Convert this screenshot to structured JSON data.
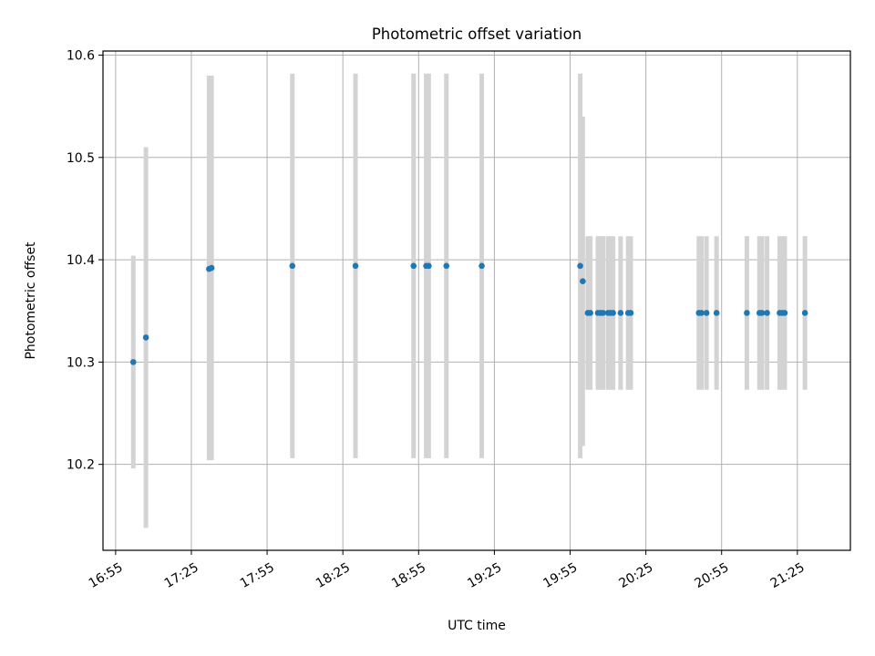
{
  "chart_data": {
    "type": "scatter",
    "title": "Photometric offset variation",
    "xlabel": "UTC time",
    "ylabel": "Photometric offset",
    "x_axis_type": "time",
    "xlim": [
      "16:50",
      "21:46"
    ],
    "ylim": [
      10.116,
      10.604
    ],
    "xticks": [
      "16:55",
      "17:25",
      "17:55",
      "18:25",
      "18:55",
      "19:25",
      "19:55",
      "20:25",
      "20:55",
      "21:25"
    ],
    "yticks": [
      10.2,
      10.3,
      10.4,
      10.5,
      10.6
    ],
    "grid": true,
    "series": [
      {
        "color": "#1f77b4",
        "errorbar_color": "#d3d3d3",
        "points": [
          {
            "x": "17:02",
            "y": 10.3,
            "y_low": 10.196,
            "y_high": 10.404
          },
          {
            "x": "17:07",
            "y": 10.324,
            "y_low": 10.138,
            "y_high": 10.51
          },
          {
            "x": "17:32",
            "y": 10.391,
            "y_low": 10.204,
            "y_high": 10.58
          },
          {
            "x": "17:33",
            "y": 10.392,
            "y_low": 10.204,
            "y_high": 10.58
          },
          {
            "x": "18:05",
            "y": 10.394,
            "y_low": 10.206,
            "y_high": 10.582
          },
          {
            "x": "18:30",
            "y": 10.394,
            "y_low": 10.206,
            "y_high": 10.582
          },
          {
            "x": "18:53",
            "y": 10.394,
            "y_low": 10.206,
            "y_high": 10.582
          },
          {
            "x": "18:58",
            "y": 10.394,
            "y_low": 10.206,
            "y_high": 10.582
          },
          {
            "x": "18:59",
            "y": 10.394,
            "y_low": 10.206,
            "y_high": 10.582
          },
          {
            "x": "19:06",
            "y": 10.394,
            "y_low": 10.206,
            "y_high": 10.582
          },
          {
            "x": "19:20",
            "y": 10.394,
            "y_low": 10.206,
            "y_high": 10.582
          },
          {
            "x": "19:59",
            "y": 10.394,
            "y_low": 10.206,
            "y_high": 10.582
          },
          {
            "x": "20:00",
            "y": 10.379,
            "y_low": 10.218,
            "y_high": 10.54
          },
          {
            "x": "20:02",
            "y": 10.348,
            "y_low": 10.273,
            "y_high": 10.423
          },
          {
            "x": "20:03",
            "y": 10.348,
            "y_low": 10.273,
            "y_high": 10.423
          },
          {
            "x": "20:06",
            "y": 10.348,
            "y_low": 10.273,
            "y_high": 10.423
          },
          {
            "x": "20:07",
            "y": 10.348,
            "y_low": 10.273,
            "y_high": 10.423
          },
          {
            "x": "20:08",
            "y": 10.348,
            "y_low": 10.273,
            "y_high": 10.423
          },
          {
            "x": "20:10",
            "y": 10.348,
            "y_low": 10.273,
            "y_high": 10.423
          },
          {
            "x": "20:11",
            "y": 10.348,
            "y_low": 10.273,
            "y_high": 10.423
          },
          {
            "x": "20:12",
            "y": 10.348,
            "y_low": 10.273,
            "y_high": 10.423
          },
          {
            "x": "20:15",
            "y": 10.348,
            "y_low": 10.273,
            "y_high": 10.423
          },
          {
            "x": "20:18",
            "y": 10.348,
            "y_low": 10.273,
            "y_high": 10.423
          },
          {
            "x": "20:19",
            "y": 10.348,
            "y_low": 10.273,
            "y_high": 10.423
          },
          {
            "x": "20:46",
            "y": 10.348,
            "y_low": 10.273,
            "y_high": 10.423
          },
          {
            "x": "20:47",
            "y": 10.348,
            "y_low": 10.273,
            "y_high": 10.423
          },
          {
            "x": "20:49",
            "y": 10.348,
            "y_low": 10.273,
            "y_high": 10.423
          },
          {
            "x": "20:53",
            "y": 10.348,
            "y_low": 10.273,
            "y_high": 10.423
          },
          {
            "x": "21:05",
            "y": 10.348,
            "y_low": 10.273,
            "y_high": 10.423
          },
          {
            "x": "21:10",
            "y": 10.348,
            "y_low": 10.273,
            "y_high": 10.423
          },
          {
            "x": "21:11",
            "y": 10.348,
            "y_low": 10.273,
            "y_high": 10.423
          },
          {
            "x": "21:13",
            "y": 10.348,
            "y_low": 10.273,
            "y_high": 10.423
          },
          {
            "x": "21:18",
            "y": 10.348,
            "y_low": 10.273,
            "y_high": 10.423
          },
          {
            "x": "21:19",
            "y": 10.348,
            "y_low": 10.273,
            "y_high": 10.423
          },
          {
            "x": "21:20",
            "y": 10.348,
            "y_low": 10.273,
            "y_high": 10.423
          },
          {
            "x": "21:28",
            "y": 10.348,
            "y_low": 10.273,
            "y_high": 10.423
          }
        ]
      }
    ]
  }
}
